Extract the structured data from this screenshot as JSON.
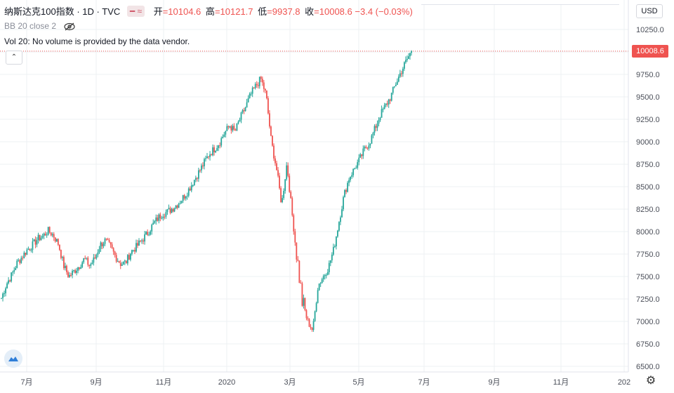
{
  "header": {
    "symbol": "纳斯达克100指数",
    "interval": "1D",
    "source": "TVC",
    "open_label": "开",
    "open_value": "=10104.6",
    "high_label": "高",
    "high_value": "=10121.7",
    "low_label": "低",
    "low_value": "=9937.8",
    "close_label": "收",
    "close_value": "=10008.6",
    "change": "−3.4 (−0.03%)"
  },
  "indicators": {
    "bb": "BB 20 close 2",
    "vol": "Vol 20: No volume is provided by the data vendor."
  },
  "currency": "USD",
  "last_price_label": "10008.6",
  "colors": {
    "up": "#26a69a",
    "down": "#ef5350",
    "grid": "#eef0f3",
    "last_price_line": "#ef5350"
  },
  "icons": {
    "eye": "eye-off-icon",
    "collapse": "chevron-up-icon",
    "logo": "cloud-logo-icon",
    "settings": "gear-icon"
  },
  "chart_data": {
    "type": "candlestick",
    "y_ticks": [
      10250,
      10000,
      9750,
      9500,
      9250,
      9000,
      8750,
      8500,
      8250,
      8000,
      7750,
      7500,
      7250,
      7000,
      6750,
      6500
    ],
    "y_tick_labels": [
      "10250.0",
      "10000.0",
      "9750.0",
      "9500.0",
      "9250.0",
      "9000.0",
      "8750.0",
      "8500.0",
      "8250.0",
      "8000.0",
      "7750.0",
      "7500.0",
      "7250.0",
      "7000.0",
      "6750.0",
      "6500.0"
    ],
    "ylim": [
      6450,
      10460
    ],
    "x_ticks": [
      "7月",
      "9月",
      "11月",
      "2020",
      "3月",
      "5月",
      "7月",
      "9月",
      "11月",
      "202"
    ],
    "last_close": 10008.6,
    "trend_months": [
      6,
      7,
      8,
      9,
      10,
      11,
      12,
      13,
      14,
      15,
      16,
      17,
      18,
      19,
      20,
      21,
      22,
      23,
      24,
      25,
      26,
      27,
      28,
      29,
      30,
      31,
      32,
      33,
      34,
      35,
      36,
      37,
      38,
      39,
      40,
      41,
      42,
      43,
      44,
      45,
      46,
      47,
      48,
      49,
      50,
      51,
      52,
      53,
      54,
      55,
      56,
      57,
      58,
      59,
      60,
      61,
      62,
      63,
      64,
      65,
      66,
      67,
      68,
      69,
      70,
      71,
      72,
      73,
      74,
      75,
      76,
      77,
      78,
      79,
      80,
      81,
      82,
      83,
      84,
      85
    ],
    "closes": [
      7260,
      7420,
      7520,
      7650,
      7720,
      7800,
      7850,
      7920,
      7950,
      8010,
      7960,
      7860,
      7620,
      7500,
      7560,
      7620,
      7700,
      7620,
      7700,
      7850,
      7900,
      7830,
      7720,
      7640,
      7660,
      7780,
      7830,
      7900,
      7970,
      8060,
      8140,
      8200,
      8220,
      8260,
      8310,
      8380,
      8460,
      8560,
      8660,
      8760,
      8860,
      8920,
      8990,
      9100,
      9180,
      9110,
      9260,
      9380,
      9520,
      9620,
      9700,
      9520,
      9000,
      8700,
      8300,
      8760,
      8200,
      7700,
      7200,
      7000,
      6900,
      7400,
      7500,
      7600,
      7800,
      8100,
      8400,
      8600,
      8700,
      8800,
      8920,
      9000,
      9150,
      9300,
      9400,
      9500,
      9650,
      9780,
      9900,
      10008.6
    ]
  }
}
